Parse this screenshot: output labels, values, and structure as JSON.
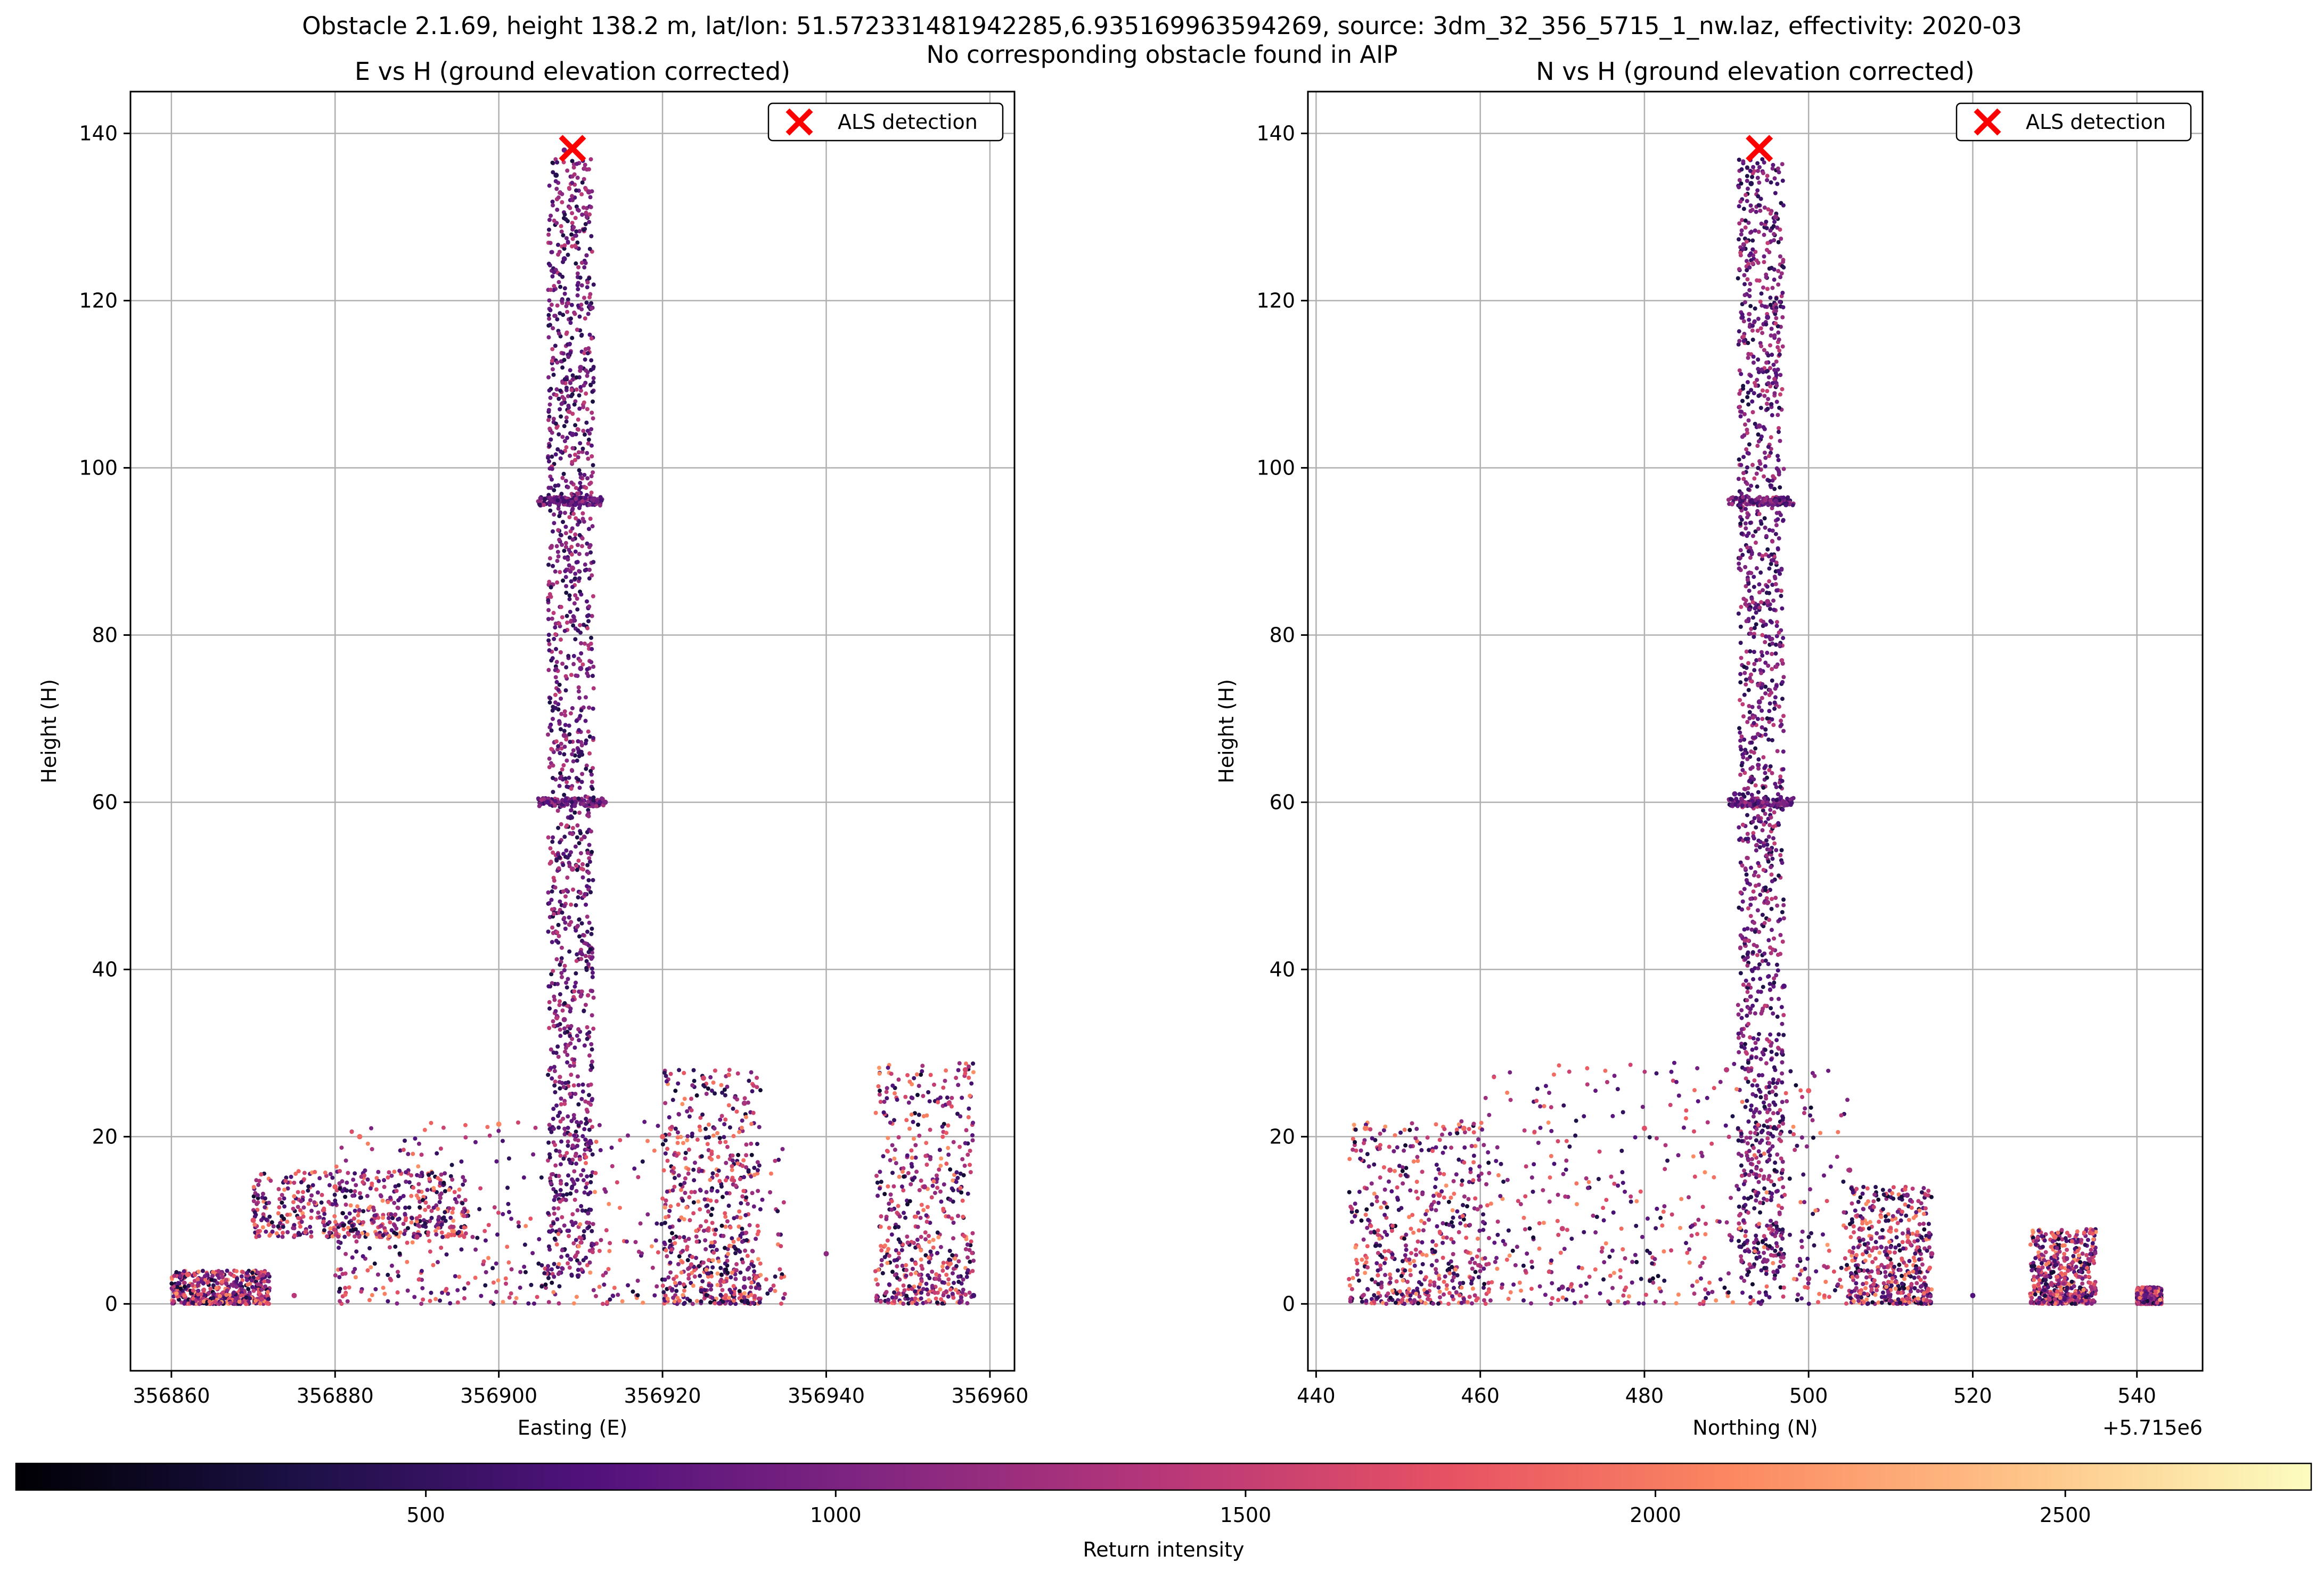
{
  "figure": {
    "title_line1": "Obstacle 2.1.69, height 138.2 m, lat/lon: 51.572331481942285,6.935169963594269, source: 3dm_32_356_5715_1_nw.laz, effectivity: 2020-03",
    "title_line2": "No corresponding obstacle found in AIP"
  },
  "colormap": {
    "name": "magma",
    "stops": [
      "#000004",
      "#1d1147",
      "#51127c",
      "#822681",
      "#b73779",
      "#e75263",
      "#fc8961",
      "#fec488",
      "#fcfdbf"
    ]
  },
  "colorbar": {
    "label": "Return intensity",
    "range": [
      0,
      2800
    ],
    "ticks": [
      "500",
      "1000",
      "1500",
      "2000",
      "2500"
    ],
    "tick_values": [
      500,
      1000,
      1500,
      2000,
      2500
    ]
  },
  "chart_data": [
    {
      "type": "scatter",
      "title": "E vs H (ground elevation corrected)",
      "xlabel": "Easting (E)",
      "ylabel": "Height (H)",
      "xlim": [
        356855,
        356963
      ],
      "ylim": [
        -8,
        145
      ],
      "xticks": [
        356860,
        356880,
        356900,
        356920,
        356940,
        356960
      ],
      "xtick_labels": [
        "356860",
        "356880",
        "356900",
        "356920",
        "356940",
        "356960"
      ],
      "yticks": [
        0,
        20,
        40,
        60,
        80,
        100,
        120,
        140
      ],
      "ytick_labels": [
        "0",
        "20",
        "40",
        "60",
        "80",
        "100",
        "120",
        "140"
      ],
      "offset_label": "",
      "grid": true,
      "legend": {
        "placement": "upper right",
        "label": "ALS detection"
      },
      "marker": {
        "label": "ALS detection",
        "x": 356909,
        "y": 138.2,
        "color": "#ff0000"
      },
      "point_summary": "point cloud with intensity colors; tower ~356906-356911 up to ~138; platforms at ~96 and ~60; buildings 0-29",
      "points": [
        [
          356908,
          138,
          900
        ],
        [
          356907,
          135,
          400
        ],
        [
          356911,
          133,
          1100
        ],
        [
          356908,
          125,
          700
        ],
        [
          356910,
          112,
          1000
        ],
        [
          356909,
          104,
          800
        ],
        [
          356908,
          96,
          600
        ],
        [
          356912,
          96,
          900
        ],
        [
          356909,
          88,
          1200
        ],
        [
          356910,
          76,
          900
        ],
        [
          356908,
          68,
          1100
        ],
        [
          356906,
          60,
          700
        ],
        [
          356913,
          60,
          1000
        ],
        [
          356909,
          52,
          1300
        ],
        [
          356910,
          42,
          900
        ],
        [
          356908,
          34,
          1100
        ],
        [
          356883,
          20,
          1900
        ],
        [
          356900,
          21.5,
          2100
        ],
        [
          356920,
          20,
          1800
        ],
        [
          356880,
          14,
          1800
        ],
        [
          356870,
          10,
          1700
        ],
        [
          356890,
          8,
          1400
        ],
        [
          356925,
          27,
          1600
        ],
        [
          356930,
          24,
          1300
        ],
        [
          356957,
          28,
          1600
        ],
        [
          356955,
          24,
          1500
        ],
        [
          356952,
          14,
          1200
        ],
        [
          356940,
          6,
          1100
        ],
        [
          356862,
          3.5,
          1800
        ],
        [
          356875,
          1,
          1400
        ],
        [
          356930,
          2,
          900
        ],
        [
          356958,
          1,
          600
        ]
      ]
    },
    {
      "type": "scatter",
      "title": "N vs H (ground elevation corrected)",
      "xlabel": "Northing (N)",
      "ylabel": "Height (H)",
      "xlim": [
        5715439,
        5715548
      ],
      "ylim": [
        -8,
        145
      ],
      "xticks": [
        5715440,
        5715460,
        5715480,
        5715500,
        5715520,
        5715540
      ],
      "xtick_labels": [
        "440",
        "460",
        "480",
        "500",
        "520",
        "540"
      ],
      "yticks": [
        0,
        20,
        40,
        60,
        80,
        100,
        120,
        140
      ],
      "ytick_labels": [
        "0",
        "20",
        "40",
        "60",
        "80",
        "100",
        "120",
        "140"
      ],
      "offset_label": "+5.715e6",
      "grid": true,
      "legend": {
        "placement": "upper right",
        "label": "ALS detection"
      },
      "marker": {
        "label": "ALS detection",
        "x": 5715494,
        "y": 138.2,
        "color": "#ff0000"
      },
      "point_summary": "tower ~5715492-5715497 up to ~138; platforms at ~96 and ~60; buildings 0-29",
      "points": [
        [
          5715494,
          138,
          900
        ],
        [
          5715493,
          134,
          400
        ],
        [
          5715496,
          130,
          1100
        ],
        [
          5715495,
          118,
          800
        ],
        [
          5715494,
          105,
          1000
        ],
        [
          5715493,
          96,
          600
        ],
        [
          5715496,
          96,
          900
        ],
        [
          5715495,
          84,
          1200
        ],
        [
          5715494,
          72,
          900
        ],
        [
          5715491,
          61,
          800
        ],
        [
          5715497,
          60,
          1000
        ],
        [
          5715495,
          48,
          1200
        ],
        [
          5715497,
          38,
          700
        ],
        [
          5715446,
          21,
          2000
        ],
        [
          5715458,
          21,
          1900
        ],
        [
          5715449,
          16,
          1600
        ],
        [
          5715455,
          13,
          1700
        ],
        [
          5715470,
          9,
          1500
        ],
        [
          5715480,
          21,
          1700
        ],
        [
          5715490,
          28,
          1400
        ],
        [
          5715500,
          25.5,
          1800
        ],
        [
          5715505,
          16,
          1300
        ],
        [
          5715512,
          13,
          1000
        ],
        [
          5715530,
          8,
          1900
        ],
        [
          5715528,
          4,
          1100
        ],
        [
          5715541,
          1,
          800
        ],
        [
          5715470,
          2,
          1000
        ],
        [
          5715500,
          3,
          1200
        ],
        [
          5715515,
          6,
          1300
        ],
        [
          5715520,
          1,
          700
        ]
      ]
    }
  ]
}
